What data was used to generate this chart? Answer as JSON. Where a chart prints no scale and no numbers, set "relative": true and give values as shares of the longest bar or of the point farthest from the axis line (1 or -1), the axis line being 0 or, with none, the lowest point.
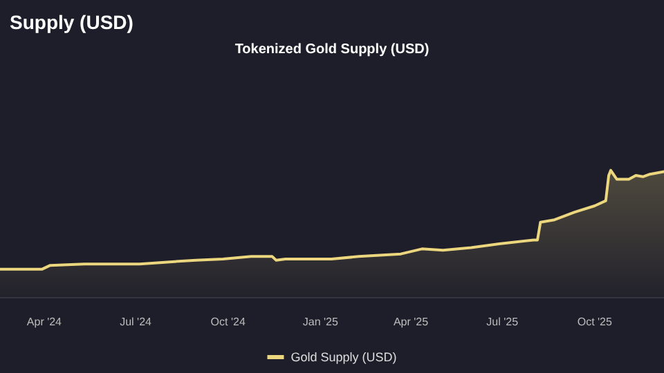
{
  "chart_data": {
    "type": "area",
    "title": "Supply (USD)",
    "subtitle": "Tokenized Gold Supply (USD)",
    "relative": true,
    "legend": "bottom",
    "line_style": "solid",
    "marker": "none",
    "xlim": [
      "2024-02-17",
      "2025-12-09"
    ],
    "xticks": [
      {
        "value": "2024-04-01",
        "label": "Apr '24"
      },
      {
        "value": "2024-07-01",
        "label": "Jul '24"
      },
      {
        "value": "2024-10-01",
        "label": "Oct '24"
      },
      {
        "value": "2025-01-01",
        "label": "Jan '25"
      },
      {
        "value": "2025-04-01",
        "label": "Apr '25"
      },
      {
        "value": "2025-07-01",
        "label": "Jul '25"
      },
      {
        "value": "2025-10-01",
        "label": "Oct '25"
      }
    ],
    "x": [
      "2024-02-17",
      "2024-03-30",
      "2024-04-07",
      "2024-05-11",
      "2024-07-05",
      "2024-08-09",
      "2024-08-30",
      "2024-09-26",
      "2024-10-24",
      "2024-11-14",
      "2024-11-18",
      "2024-11-27",
      "2025-01-12",
      "2025-02-08",
      "2025-03-22",
      "2025-04-12",
      "2025-05-03",
      "2025-05-31",
      "2025-06-28",
      "2025-08-01",
      "2025-08-05",
      "2025-08-08",
      "2025-08-22",
      "2025-09-11",
      "2025-10-01",
      "2025-10-12",
      "2025-10-15",
      "2025-10-17",
      "2025-10-23",
      "2025-11-04",
      "2025-11-11",
      "2025-11-18",
      "2025-11-25",
      "2025-12-09"
    ],
    "series": [
      {
        "name": "Gold Supply (USD)",
        "color": "#ecd77e",
        "values": [
          0.22,
          0.22,
          0.25,
          0.26,
          0.26,
          0.28,
          0.29,
          0.3,
          0.32,
          0.32,
          0.29,
          0.3,
          0.3,
          0.32,
          0.34,
          0.38,
          0.37,
          0.39,
          0.42,
          0.45,
          0.45,
          0.59,
          0.61,
          0.67,
          0.72,
          0.76,
          0.96,
          1,
          0.93,
          0.93,
          0.96,
          0.95,
          0.97,
          0.99
        ]
      }
    ]
  }
}
